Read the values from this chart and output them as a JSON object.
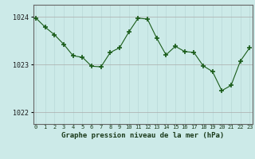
{
  "x": [
    0,
    1,
    2,
    3,
    4,
    5,
    6,
    7,
    8,
    9,
    10,
    11,
    12,
    13,
    14,
    15,
    16,
    17,
    18,
    19,
    20,
    21,
    22,
    23
  ],
  "y": [
    1023.97,
    1023.78,
    1023.62,
    1023.42,
    1023.18,
    1023.15,
    1022.96,
    1022.95,
    1023.25,
    1023.35,
    1023.68,
    1023.97,
    1023.95,
    1023.55,
    1023.2,
    1023.38,
    1023.27,
    1023.25,
    1022.97,
    1022.85,
    1022.45,
    1022.56,
    1023.07,
    1023.35
  ],
  "line_color": "#1a5c1a",
  "marker_color": "#1a5c1a",
  "bg_color": "#cceae8",
  "grid_color_v": "#b8d8d8",
  "grid_color_h": "#aaaaaa",
  "title": "Graphe pression niveau de la mer (hPa)",
  "ylabel_ticks": [
    1022,
    1023,
    1024
  ],
  "xlim": [
    -0.3,
    23.3
  ],
  "ylim": [
    1021.75,
    1024.25
  ],
  "xtick_labels": [
    "0",
    "1",
    "2",
    "3",
    "4",
    "5",
    "6",
    "7",
    "8",
    "9",
    "10",
    "11",
    "12",
    "13",
    "14",
    "15",
    "16",
    "17",
    "18",
    "19",
    "20",
    "21",
    "22",
    "23"
  ]
}
